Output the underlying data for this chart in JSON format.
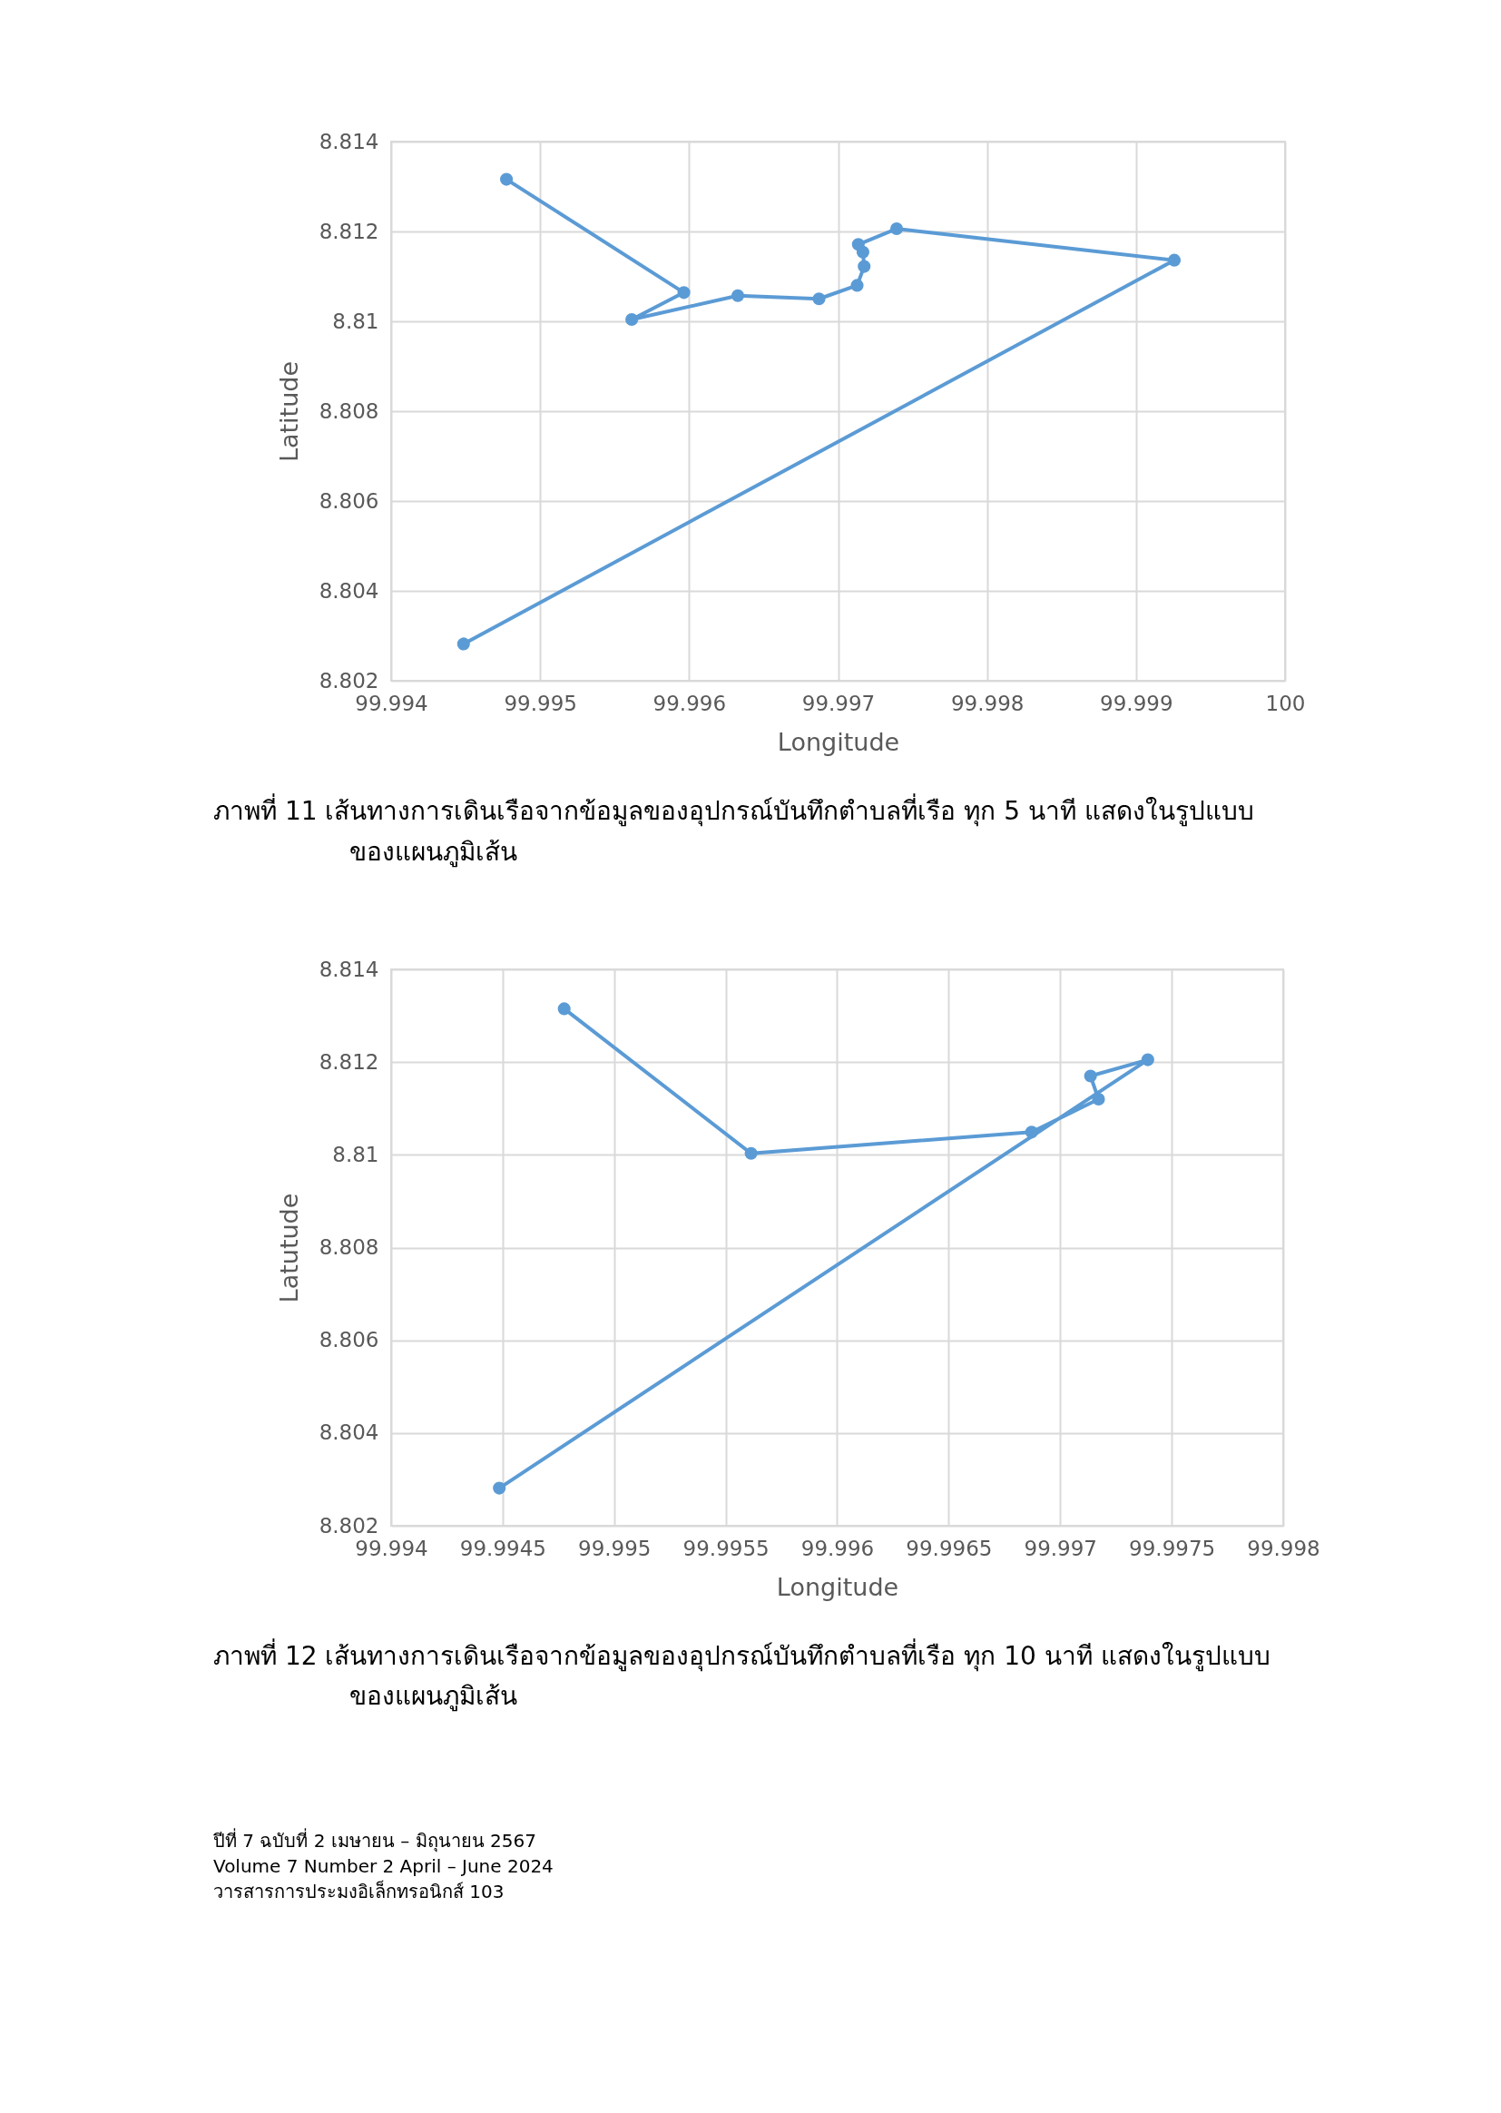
{
  "chart_data": [
    {
      "type": "line",
      "xlabel": "Longitude",
      "ylabel": "Latitude",
      "marker": "circle",
      "grid": true,
      "x": [
        99.994774,
        99.995965,
        99.995615,
        99.996327,
        99.996872,
        99.997128,
        99.997175,
        99.997167,
        99.997136,
        99.997393,
        99.999257,
        99.994486
      ],
      "series": [
        {
          "color": "#5b9bd5",
          "values": [
            8.81316,
            8.81064,
            8.81004,
            8.81057,
            8.8105,
            8.8108,
            8.81122,
            8.81154,
            8.81171,
            8.81206,
            8.81136,
            8.80282
          ]
        }
      ],
      "xlim": [
        99.994,
        100
      ],
      "xticks": [
        99.994,
        99.995,
        99.996,
        99.997,
        99.998,
        99.999,
        100
      ],
      "ylim": [
        8.802,
        8.814
      ],
      "yticks": [
        8.802,
        8.804,
        8.806,
        8.808,
        8.81,
        8.812,
        8.814
      ],
      "annotations": [
        "ภาพที่ 11  เส้นทางการเดินเรือจากข้อมูลของอุปกรณ์บันทึกตำบลที่เรือ ทุก 5 นาที แสดงในรูปแบบของแผนภูมิเส้น"
      ]
    },
    {
      "type": "line",
      "xlabel": "Longitude",
      "ylabel": "Latutude",
      "marker": "circle",
      "grid": true,
      "x": [
        99.994776,
        99.995614,
        99.996872,
        99.997172,
        99.997136,
        99.997393,
        99.994485
      ],
      "series": [
        {
          "color": "#5b9bd5",
          "values": [
            8.81315,
            8.81003,
            8.81049,
            8.8112,
            8.8117,
            8.81205,
            8.80281
          ]
        }
      ],
      "xlim": [
        99.994,
        99.998
      ],
      "xticks": [
        99.994,
        99.9945,
        99.995,
        99.9955,
        99.996,
        99.9965,
        99.997,
        99.9975,
        99.998
      ],
      "ylim": [
        8.802,
        8.814
      ],
      "yticks": [
        8.802,
        8.804,
        8.806,
        8.808,
        8.81,
        8.812,
        8.814
      ],
      "annotations": [
        "ภาพที่ 12  เส้นทางการเดินเรือจากข้อมูลของอุปกรณ์บันทึกตำบลที่เรือ ทุก 10 นาที แสดงในรูปแบบของแผนภูมิเส้น",
        "ปีที่ 7 ฉบับที่ 2 เมษายน – มิถุนายน 2567",
        "Volume 7 Number 2 April – June 2024",
        "วารสารการประมงอิเล็กทรอนิกส์ 103"
      ]
    }
  ]
}
